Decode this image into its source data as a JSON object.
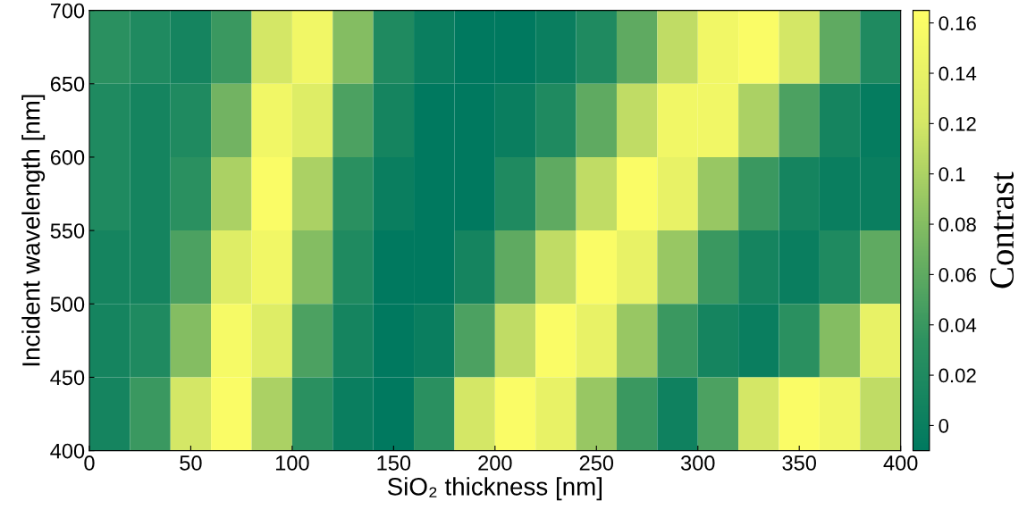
{
  "chart_data": {
    "type": "heatmap",
    "xlabel": "SiO₂ thickness [nm]",
    "ylabel": "Incident wavelength [nm]",
    "clabel": "Contrast",
    "x": [
      10,
      30,
      50,
      70,
      90,
      110,
      130,
      150,
      170,
      190,
      210,
      230,
      250,
      270,
      290,
      310,
      330,
      350,
      370,
      390
    ],
    "y": [
      675,
      625,
      575,
      525,
      475,
      425
    ],
    "xlim": [
      0,
      400
    ],
    "ylim": [
      400,
      700
    ],
    "xticks": [
      0,
      50,
      100,
      150,
      200,
      250,
      300,
      350,
      400
    ],
    "yticks": [
      400,
      450,
      500,
      550,
      600,
      650,
      700
    ],
    "clim": [
      -0.01,
      0.165
    ],
    "cticks": [
      0,
      0.02,
      0.04,
      0.06,
      0.08,
      0.1,
      0.12,
      0.14,
      0.16
    ],
    "cells": [
      [
        0.03,
        0.02,
        0.01,
        0.04,
        0.12,
        0.15,
        0.08,
        0.02,
        0.0,
        -0.01,
        -0.01,
        0.0,
        0.02,
        0.06,
        0.11,
        0.15,
        0.16,
        0.12,
        0.06,
        0.02
      ],
      [
        0.02,
        0.01,
        0.02,
        0.07,
        0.15,
        0.13,
        0.05,
        0.01,
        -0.01,
        -0.01,
        0.0,
        0.02,
        0.06,
        0.11,
        0.15,
        0.15,
        0.1,
        0.05,
        0.01,
        -0.005
      ],
      [
        0.02,
        0.01,
        0.03,
        0.1,
        0.16,
        0.1,
        0.03,
        0.0,
        -0.01,
        -0.01,
        0.02,
        0.06,
        0.11,
        0.16,
        0.14,
        0.09,
        0.04,
        0.01,
        0.0,
        0.0
      ],
      [
        0.01,
        0.01,
        0.05,
        0.13,
        0.15,
        0.08,
        0.02,
        -0.01,
        -0.01,
        0.01,
        0.06,
        0.11,
        0.16,
        0.14,
        0.09,
        0.04,
        0.01,
        0.0,
        0.02,
        0.06
      ],
      [
        0.01,
        0.02,
        0.08,
        0.155,
        0.13,
        0.05,
        0.01,
        -0.01,
        0.0,
        0.05,
        0.11,
        0.16,
        0.14,
        0.09,
        0.04,
        0.01,
        0.0,
        0.03,
        0.08,
        0.14
      ],
      [
        0.01,
        0.04,
        0.12,
        0.16,
        0.1,
        0.03,
        0.0,
        -0.01,
        0.03,
        0.12,
        0.16,
        0.14,
        0.09,
        0.04,
        0.005,
        0.05,
        0.12,
        0.16,
        0.15,
        0.11
      ]
    ]
  }
}
